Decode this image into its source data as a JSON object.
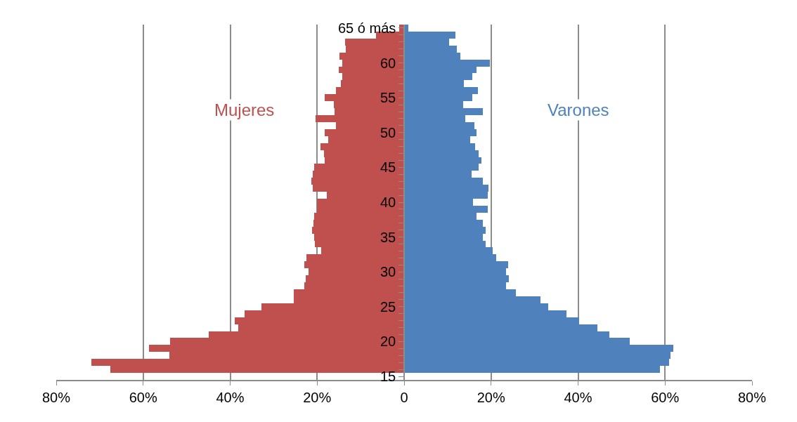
{
  "chart_data": {
    "type": "bar",
    "orientation": "horizontal",
    "categories": [
      "65 ó más",
      null,
      null,
      null,
      null,
      "60",
      null,
      null,
      null,
      null,
      "55",
      null,
      null,
      null,
      null,
      "50",
      null,
      null,
      null,
      null,
      "45",
      null,
      null,
      null,
      null,
      "40",
      null,
      null,
      null,
      null,
      "35",
      null,
      null,
      null,
      null,
      "30",
      null,
      null,
      null,
      null,
      "25",
      null,
      null,
      null,
      null,
      "20",
      null,
      null,
      null,
      null,
      "15"
    ],
    "series": [
      {
        "name": "Mujeres",
        "color": "#c0504d",
        "values": [
          -1.1,
          -6.5,
          -13.6,
          -13.4,
          -14.8,
          -14.3,
          -15.1,
          -14.2,
          -14.5,
          -15.6,
          -18.2,
          -16.2,
          -16.0,
          -20.4,
          -15.6,
          -18.2,
          -17.5,
          -19.3,
          -18.4,
          -18.2,
          -20.7,
          -21.0,
          -21.4,
          -21.0,
          -17.7,
          -20.0,
          -20.0,
          -20.7,
          -20.8,
          -21.1,
          -20.7,
          -20.5,
          -19.0,
          -22.5,
          -22.9,
          -21.9,
          -22.7,
          -23.0,
          -25.4,
          -25.4,
          -32.8,
          -36.7,
          -38.9,
          -38.2,
          -45.0,
          -53.8,
          -58.6,
          -54.0,
          -72.0,
          -67.5,
          null
        ]
      },
      {
        "name": "Varones",
        "color": "#4f81bd",
        "values": [
          1.0,
          11.8,
          10.4,
          12.2,
          13.0,
          19.7,
          16.7,
          15.6,
          13.7,
          16.9,
          15.7,
          13.6,
          18.1,
          14.1,
          16.2,
          16.7,
          15.2,
          16.3,
          17.2,
          17.7,
          17.1,
          15.5,
          18.1,
          19.4,
          19.3,
          15.9,
          19.3,
          16.6,
          18.1,
          18.8,
          18.1,
          18.8,
          20.3,
          21.1,
          23.9,
          23.5,
          24.1,
          23.5,
          25.7,
          31.3,
          33.1,
          37.3,
          40.3,
          44.5,
          47.2,
          51.9,
          61.9,
          61.2,
          61.0,
          58.9,
          null
        ]
      }
    ],
    "xlim": [
      -80,
      80
    ],
    "xticks": [
      {
        "value": -80,
        "label": "80%"
      },
      {
        "value": -60,
        "label": "60%"
      },
      {
        "value": -40,
        "label": "40%"
      },
      {
        "value": -20,
        "label": "20%"
      },
      0,
      {
        "value": 20,
        "label": "20%"
      },
      {
        "value": 40,
        "label": "40%"
      },
      {
        "value": 60,
        "label": "60%"
      },
      {
        "value": 80,
        "label": "80%"
      }
    ],
    "grid": "x",
    "legend": false,
    "stacked": true
  }
}
